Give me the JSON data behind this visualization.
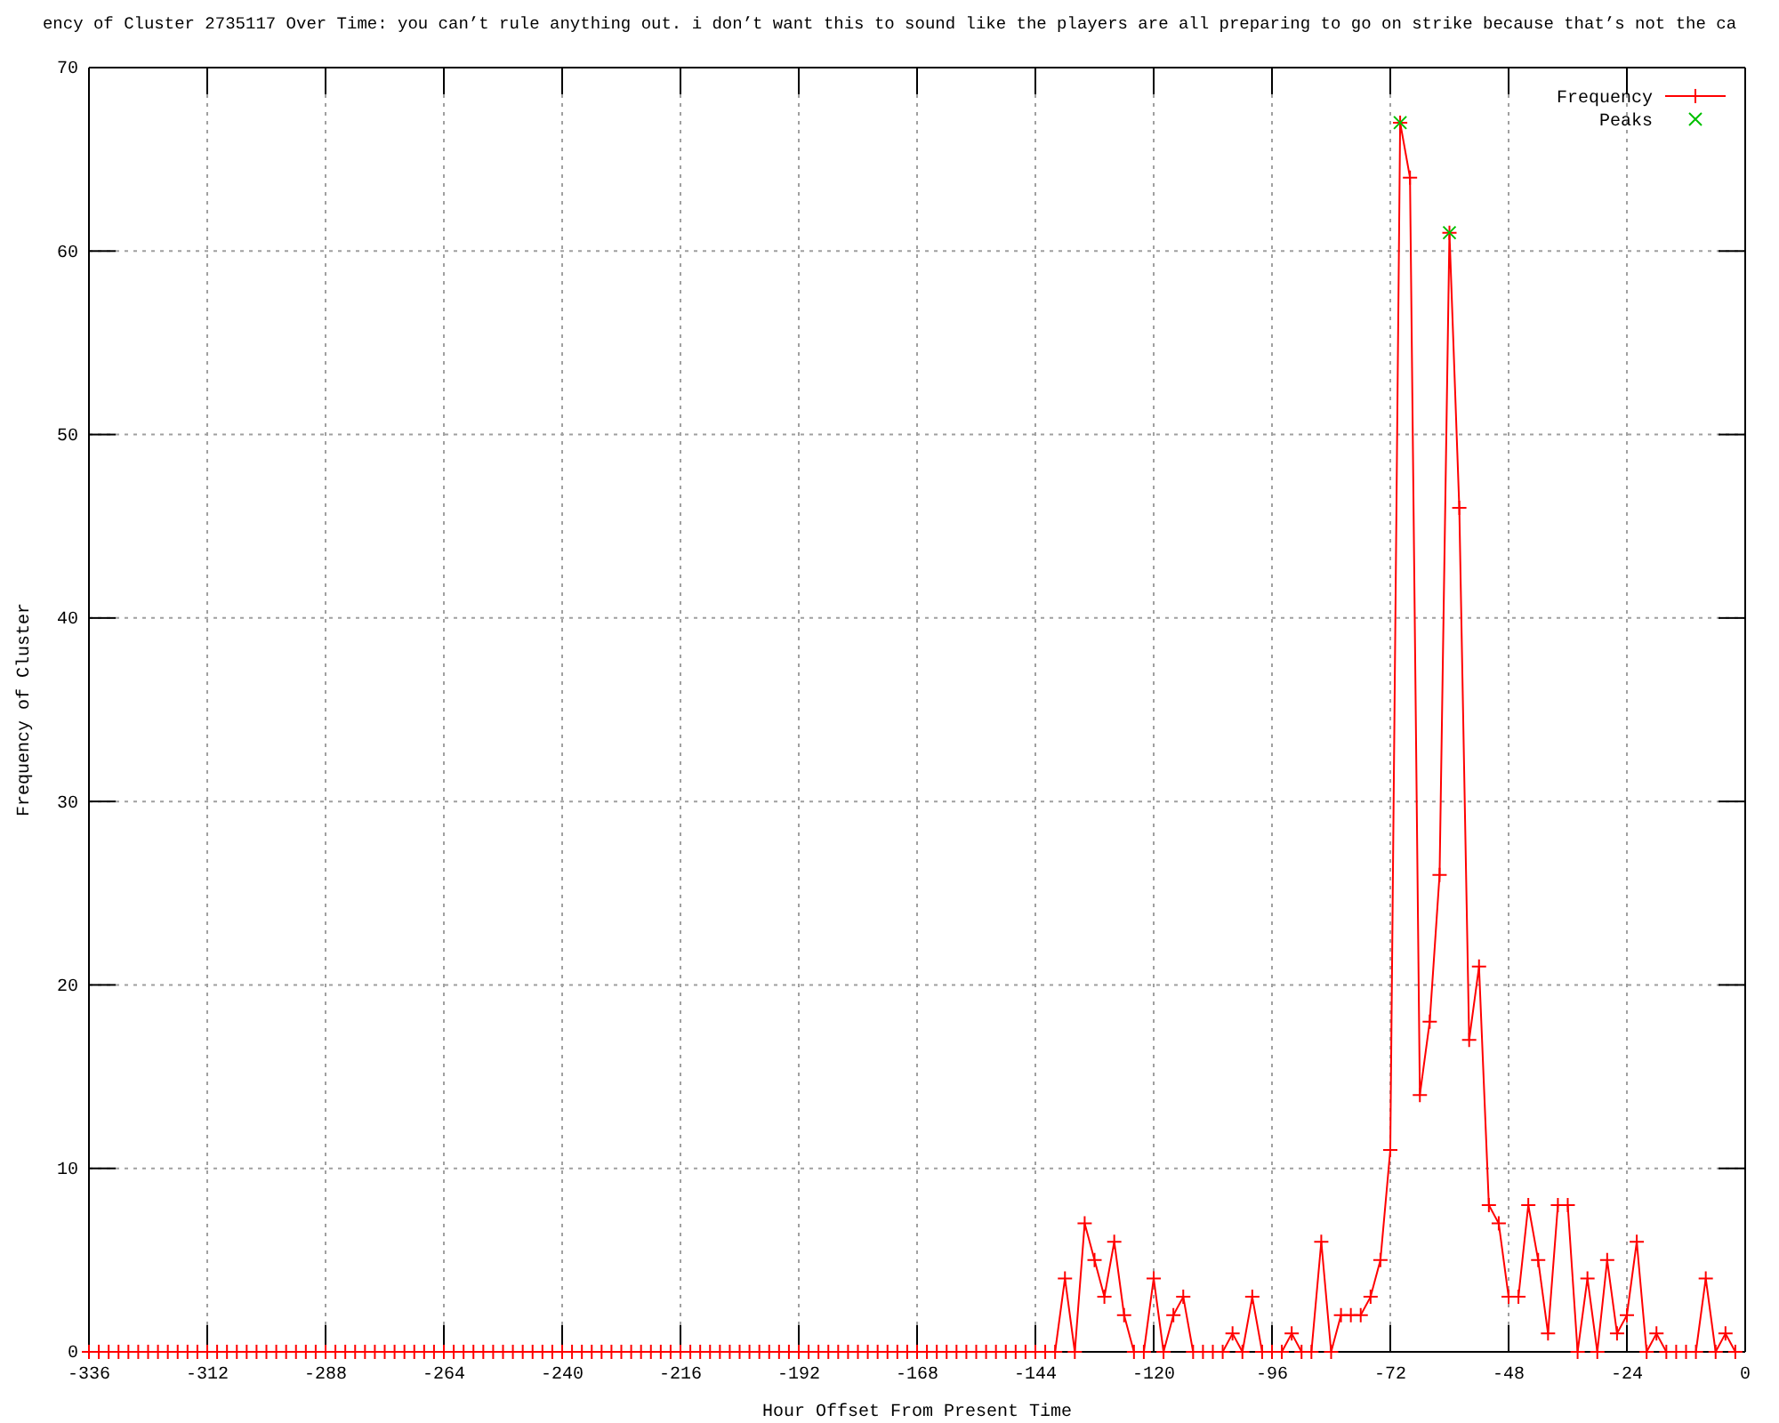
{
  "chart_data": {
    "type": "line",
    "title": "ency of Cluster 2735117 Over Time: you can’t rule anything out. i don’t want this to sound like the players are all preparing to go on strike because that’s not the ca",
    "xlabel": "Hour Offset From Present Time",
    "ylabel": "Frequency of Cluster",
    "xlim": [
      -336,
      0
    ],
    "ylim": [
      0,
      70
    ],
    "xticks": [
      -336,
      -312,
      -288,
      -264,
      -240,
      -216,
      -192,
      -168,
      -144,
      -120,
      -96,
      -72,
      -48,
      -24,
      0
    ],
    "yticks": [
      0,
      10,
      20,
      30,
      40,
      50,
      60,
      70
    ],
    "grid": true,
    "legend": "top right",
    "series": [
      {
        "name": "Frequency",
        "type": "line",
        "color": "#ff0000",
        "marker": "cross",
        "x": [
          -336,
          -334,
          -332,
          -330,
          -328,
          -326,
          -324,
          -322,
          -320,
          -318,
          -316,
          -314,
          -312,
          -310,
          -308,
          -306,
          -304,
          -302,
          -300,
          -298,
          -296,
          -294,
          -292,
          -290,
          -288,
          -286,
          -284,
          -282,
          -280,
          -278,
          -276,
          -274,
          -272,
          -270,
          -268,
          -266,
          -264,
          -262,
          -260,
          -258,
          -256,
          -254,
          -252,
          -250,
          -248,
          -246,
          -244,
          -242,
          -240,
          -238,
          -236,
          -234,
          -232,
          -230,
          -228,
          -226,
          -224,
          -222,
          -220,
          -218,
          -216,
          -214,
          -212,
          -210,
          -208,
          -206,
          -204,
          -202,
          -200,
          -198,
          -196,
          -194,
          -192,
          -190,
          -188,
          -186,
          -184,
          -182,
          -180,
          -178,
          -176,
          -174,
          -172,
          -170,
          -168,
          -166,
          -164,
          -162,
          -160,
          -158,
          -156,
          -154,
          -152,
          -150,
          -148,
          -146,
          -144,
          -142,
          -140,
          -138,
          -136,
          -134,
          -132,
          -130,
          -128,
          -126,
          -124,
          -122,
          -120,
          -118,
          -116,
          -114,
          -112,
          -110,
          -108,
          -106,
          -104,
          -102,
          -100,
          -98,
          -96,
          -94,
          -92,
          -90,
          -88,
          -86,
          -84,
          -82,
          -80,
          -78,
          -76,
          -74,
          -72,
          -70,
          -68,
          -66,
          -64,
          -62,
          -60,
          -58,
          -56,
          -54,
          -52,
          -50,
          -48,
          -46,
          -44,
          -42,
          -40,
          -38,
          -36,
          -34,
          -32,
          -30,
          -28,
          -26,
          -24,
          -22,
          -20,
          -18,
          -16,
          -14,
          -12,
          -10,
          -8,
          -6,
          -4,
          -2
        ],
        "values": [
          0,
          0,
          0,
          0,
          0,
          0,
          0,
          0,
          0,
          0,
          0,
          0,
          0,
          0,
          0,
          0,
          0,
          0,
          0,
          0,
          0,
          0,
          0,
          0,
          0,
          0,
          0,
          0,
          0,
          0,
          0,
          0,
          0,
          0,
          0,
          0,
          0,
          0,
          0,
          0,
          0,
          0,
          0,
          0,
          0,
          0,
          0,
          0,
          0,
          0,
          0,
          0,
          0,
          0,
          0,
          0,
          0,
          0,
          0,
          0,
          0,
          0,
          0,
          0,
          0,
          0,
          0,
          0,
          0,
          0,
          0,
          0,
          0,
          0,
          0,
          0,
          0,
          0,
          0,
          0,
          0,
          0,
          0,
          0,
          0,
          0,
          0,
          0,
          0,
          0,
          0,
          0,
          0,
          0,
          0,
          0,
          0,
          0,
          0,
          4,
          0,
          7,
          5,
          3,
          6,
          2,
          0,
          0,
          4,
          0,
          2,
          3,
          0,
          0,
          0,
          0,
          1,
          0,
          3,
          0,
          0,
          0,
          1,
          0,
          0,
          6,
          0,
          2,
          2,
          2,
          3,
          5,
          11,
          67,
          64,
          14,
          18,
          26,
          61,
          46,
          17,
          21,
          8,
          7,
          3,
          3,
          8,
          5,
          1,
          8,
          8,
          0,
          4,
          0,
          5,
          1,
          2,
          6,
          0,
          1,
          0,
          0,
          0,
          0,
          4,
          0,
          1,
          0
        ]
      },
      {
        "name": "Peaks",
        "type": "scatter",
        "color": "#00c000",
        "marker": "cross",
        "x": [
          -70,
          -60
        ],
        "values": [
          67,
          61
        ]
      }
    ]
  }
}
